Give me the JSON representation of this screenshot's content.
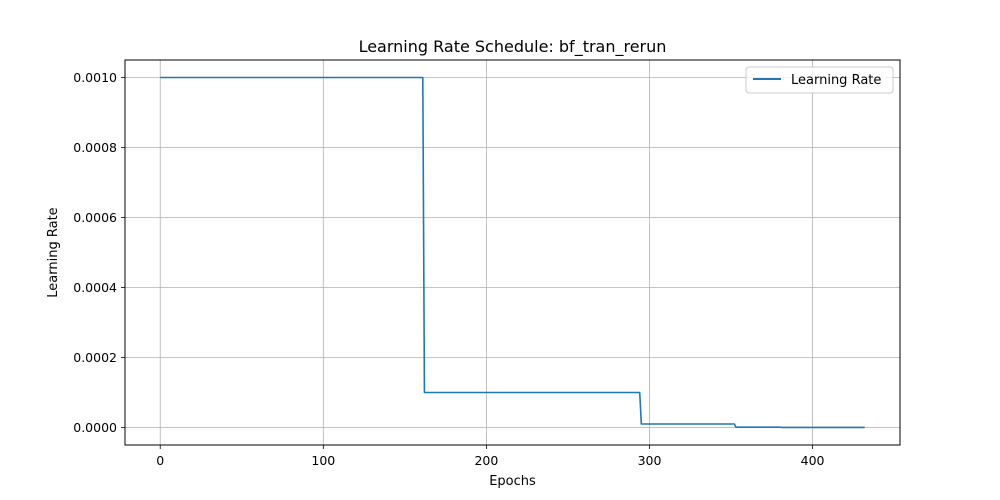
{
  "chart_data": {
    "type": "line",
    "title": "Learning Rate Schedule: bf_tran_rerun",
    "xlabel": "Epochs",
    "ylabel": "Learning Rate",
    "xlim": [
      -21.6,
      453.6
    ],
    "ylim": [
      -5e-05,
      0.00105
    ],
    "xticks": [
      0,
      100,
      200,
      300,
      400
    ],
    "xtick_labels": [
      "0",
      "100",
      "200",
      "300",
      "400"
    ],
    "yticks": [
      0.0,
      0.0002,
      0.0004,
      0.0006,
      0.0008,
      0.001
    ],
    "ytick_labels": [
      "0.0000",
      "0.0002",
      "0.0004",
      "0.0006",
      "0.0008",
      "0.0010"
    ],
    "grid": true,
    "legend": {
      "position": "top-right",
      "entries": [
        "Learning Rate"
      ]
    },
    "series": [
      {
        "name": "Learning Rate",
        "color": "#1f77b4",
        "points": [
          [
            0,
            0.001
          ],
          [
            161,
            0.001
          ],
          [
            162,
            0.0001
          ],
          [
            294,
            0.0001
          ],
          [
            295,
            1e-05
          ],
          [
            352,
            1e-05
          ],
          [
            353,
            1e-06
          ],
          [
            380,
            1e-06
          ],
          [
            381,
            1e-07
          ],
          [
            432,
            1e-07
          ]
        ]
      }
    ]
  }
}
